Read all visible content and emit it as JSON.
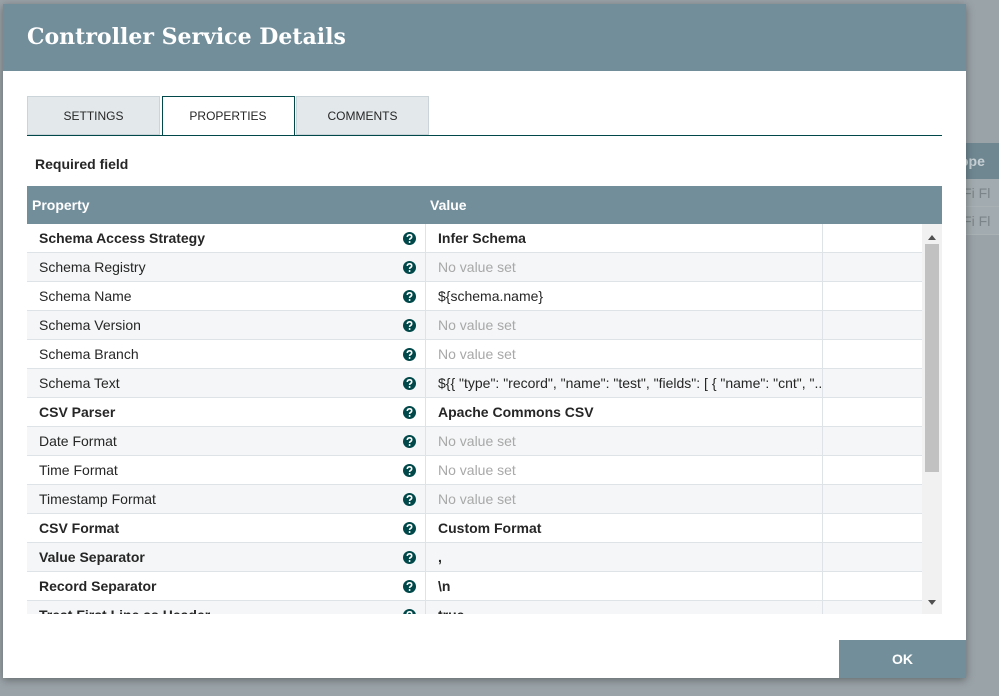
{
  "background": {
    "column_header": "ope",
    "rows": [
      "iFi Fl",
      "iFi Fl"
    ]
  },
  "dialog": {
    "title": "Controller Service Details",
    "tabs": [
      "SETTINGS",
      "PROPERTIES",
      "COMMENTS"
    ],
    "active_tab": 1,
    "required_label": "Required field",
    "table": {
      "columns": [
        "Property",
        "Value"
      ],
      "rows": [
        {
          "property": "Schema Access Strategy",
          "value": "Infer Schema",
          "required": true,
          "unset": false
        },
        {
          "property": "Schema Registry",
          "value": "No value set",
          "required": false,
          "unset": true
        },
        {
          "property": "Schema Name",
          "value": "${schema.name}",
          "required": false,
          "unset": false
        },
        {
          "property": "Schema Version",
          "value": "No value set",
          "required": false,
          "unset": true
        },
        {
          "property": "Schema Branch",
          "value": "No value set",
          "required": false,
          "unset": true
        },
        {
          "property": "Schema Text",
          "value": "${{ \"type\": \"record\", \"name\": \"test\", \"fields\": [ { \"name\": \"cnt\", \"...",
          "required": false,
          "unset": false
        },
        {
          "property": "CSV Parser",
          "value": "Apache Commons CSV",
          "required": true,
          "unset": false
        },
        {
          "property": "Date Format",
          "value": "No value set",
          "required": false,
          "unset": true
        },
        {
          "property": "Time Format",
          "value": "No value set",
          "required": false,
          "unset": true
        },
        {
          "property": "Timestamp Format",
          "value": "No value set",
          "required": false,
          "unset": true
        },
        {
          "property": "CSV Format",
          "value": "Custom Format",
          "required": true,
          "unset": false
        },
        {
          "property": "Value Separator",
          "value": ",",
          "required": true,
          "unset": false
        },
        {
          "property": "Record Separator",
          "value": "\\n",
          "required": true,
          "unset": false
        },
        {
          "property": "Treat First Line as Header",
          "value": "true",
          "required": true,
          "unset": false
        }
      ]
    },
    "ok_button": "OK"
  }
}
